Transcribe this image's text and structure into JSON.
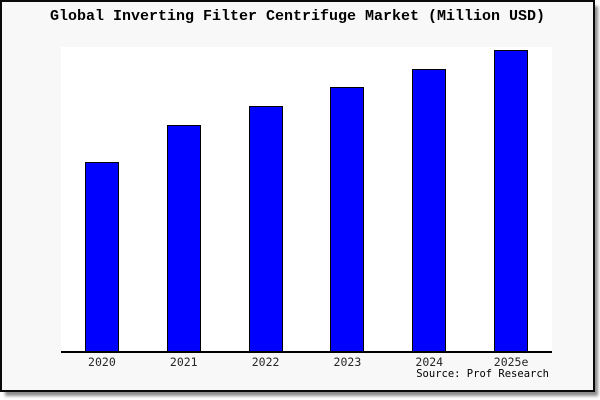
{
  "chart_data": {
    "type": "bar",
    "title": "Global Inverting Filter Centrifuge Market (Million USD)",
    "categories": [
      "2020",
      "2021",
      "2022",
      "2023",
      "2024",
      "2025e"
    ],
    "values": [
      62.8,
      75.1,
      81.4,
      87.7,
      93.7,
      100
    ],
    "ylim": [
      0,
      101
    ],
    "xlabel": "",
    "ylabel": "",
    "grid": "off",
    "legend": "none",
    "bar_color": "#0000ff",
    "bar_border_color": "#000000",
    "note": "y-axis has no ticks or labels; values are relative bar heights with 2025e = 100"
  },
  "source_label": "Source: Prof Research",
  "colors": {
    "card_background": "#f8f8f8",
    "plot_background": "#ffffff",
    "frame_border": "#000000",
    "title_text": "#000000",
    "tick_text": "#262626"
  }
}
